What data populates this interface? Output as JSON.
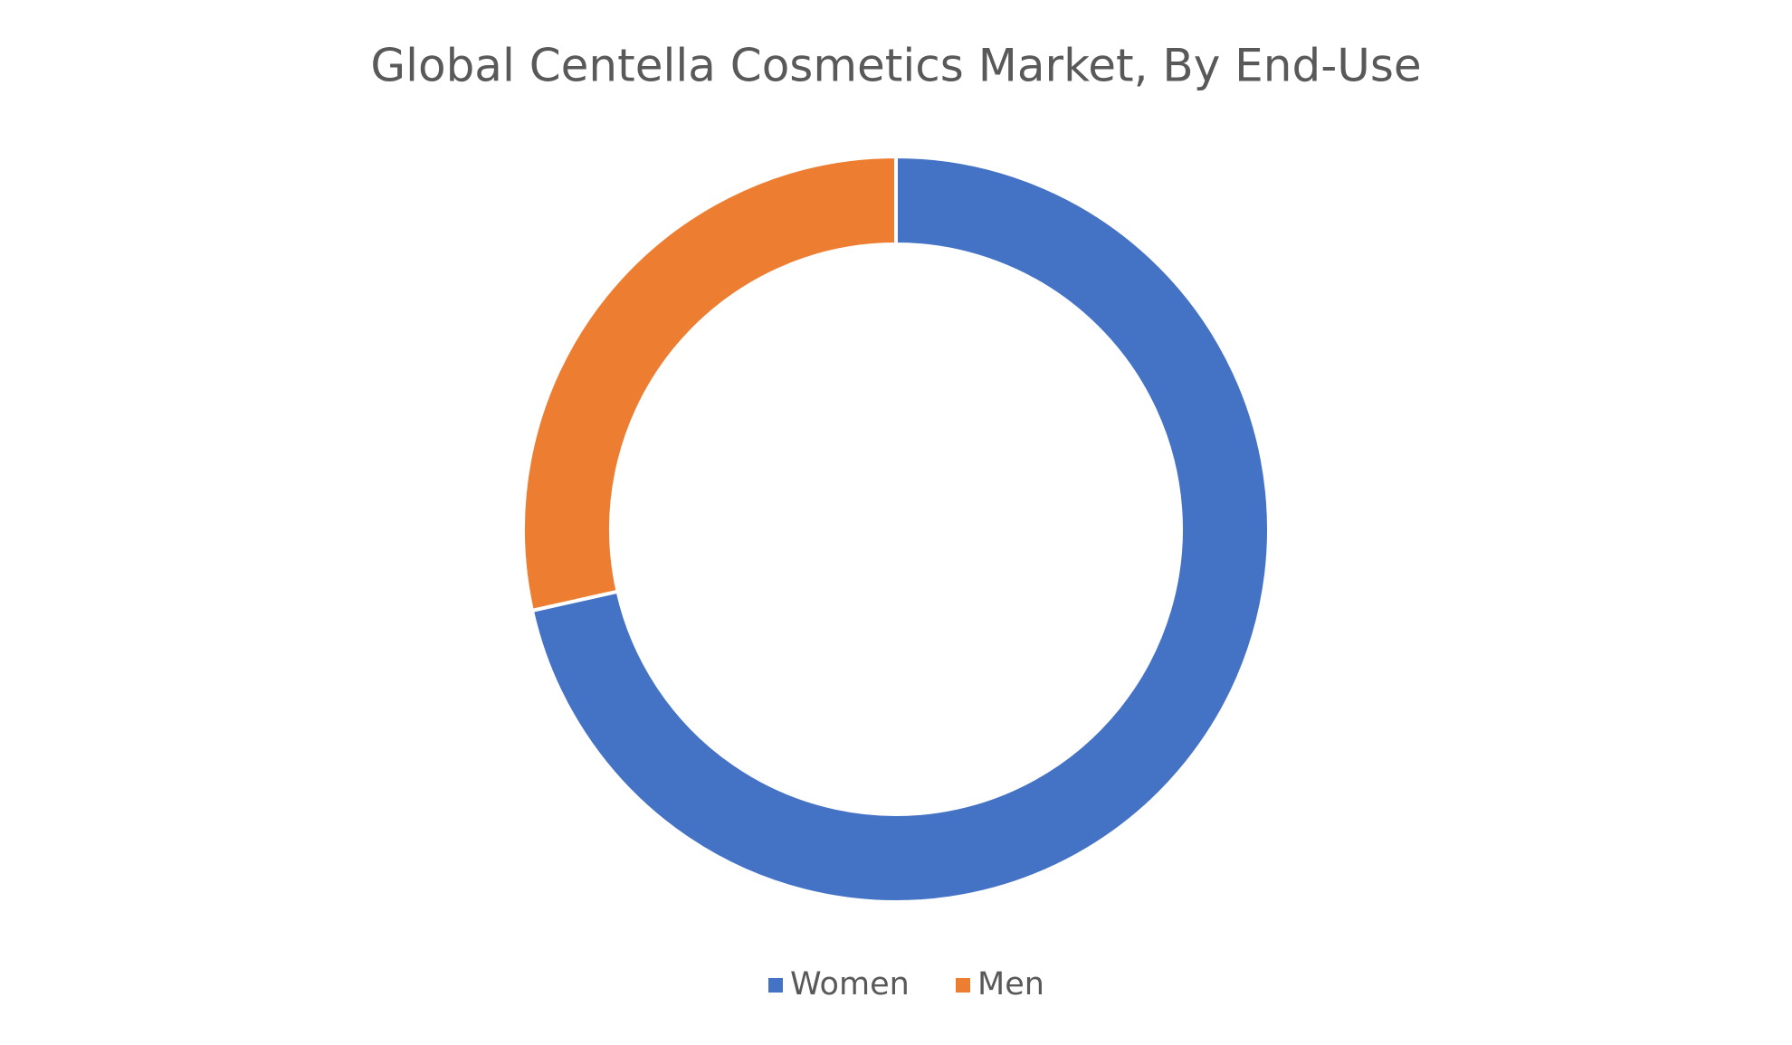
{
  "chart_data": {
    "type": "donut",
    "title": "Global Centella Cosmetics Market, By End-Use",
    "categories": [
      "Women",
      "Men"
    ],
    "values": [
      71.5,
      28.5
    ],
    "colors": [
      "#4472c4",
      "#ed7d31"
    ],
    "legend": "bottom"
  }
}
